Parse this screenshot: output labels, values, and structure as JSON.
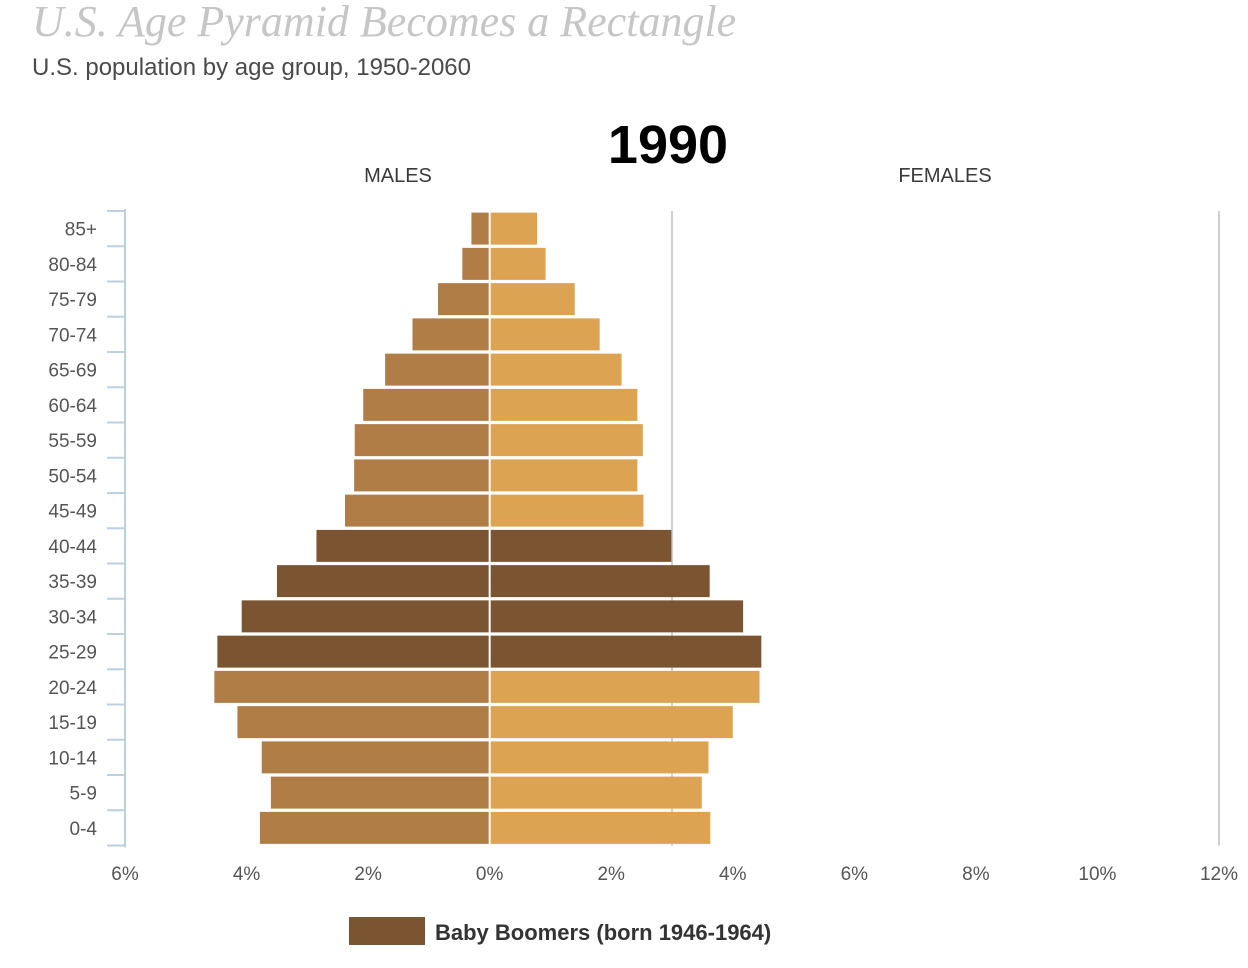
{
  "title": "U.S. Age Pyramid Becomes a Rectangle",
  "subtitle": "U.S. population by age group, 1950-2060",
  "chart_data": {
    "type": "bar",
    "orientation": "horizontal-pyramid",
    "year_label": "1990",
    "left_label": "MALES",
    "right_label": "FEMALES",
    "categories": [
      "85+",
      "80-84",
      "75-79",
      "70-74",
      "65-69",
      "60-64",
      "55-59",
      "50-54",
      "45-49",
      "40-44",
      "35-39",
      "30-34",
      "25-29",
      "20-24",
      "15-19",
      "10-14",
      "5-9",
      "0-4"
    ],
    "series": [
      {
        "values": [
          0.3,
          0.45,
          0.85,
          1.27,
          1.72,
          2.08,
          2.22,
          2.23,
          2.38,
          2.85,
          3.5,
          4.08,
          4.48,
          4.53,
          4.15,
          3.75,
          3.6,
          3.78
        ]
      },
      {
        "values": [
          0.78,
          0.92,
          1.4,
          1.81,
          2.17,
          2.43,
          2.52,
          2.43,
          2.53,
          2.99,
          3.62,
          4.17,
          4.47,
          4.44,
          4.0,
          3.6,
          3.49,
          3.63
        ]
      }
    ],
    "x_ticks": [
      "6%",
      "4%",
      "2%",
      "0%",
      "2%",
      "4%",
      "6%",
      "8%",
      "10%",
      "12%"
    ],
    "xlim": [
      -6,
      12
    ],
    "reference_line_x": 3,
    "boomer_groups": [
      "25-29",
      "30-34",
      "35-39",
      "40-44"
    ],
    "colors": {
      "male": "#b07d47",
      "female": "#dca352",
      "boomer": "#7b5531",
      "axis": "#bcd0e0",
      "refline": "#cfcfcf"
    },
    "legend": [
      {
        "label": "Baby Boomers (born 1946-1964)",
        "color": "#7b5531"
      }
    ]
  }
}
